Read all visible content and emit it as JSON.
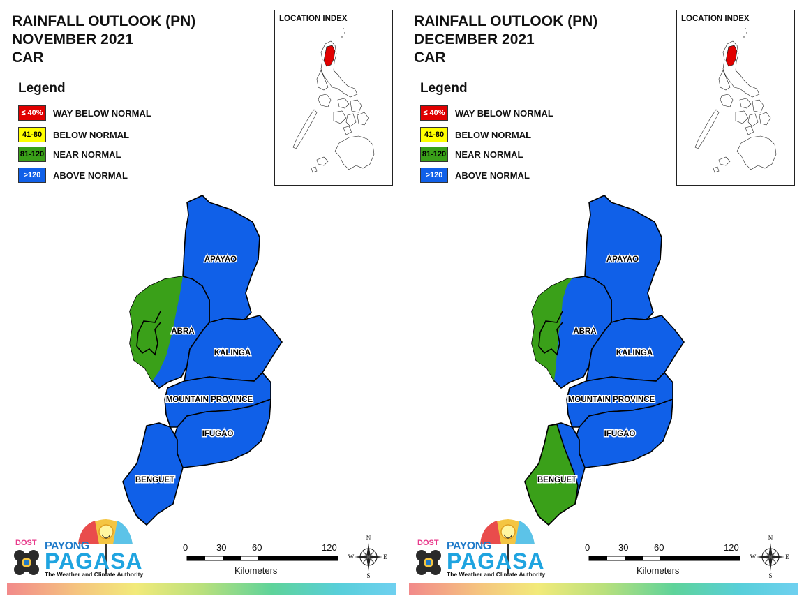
{
  "panels": [
    {
      "title_line1": "RAINFALL OUTLOOK (PN)",
      "title_line2": "NOVEMBER 2021",
      "title_line3": "CAR"
    },
    {
      "title_line1": "RAINFALL OUTLOOK (PN)",
      "title_line2": "DECEMBER 2021",
      "title_line3": "CAR"
    }
  ],
  "legend": {
    "title": "Legend",
    "items": [
      {
        "code": "≤ 40%",
        "label": "WAY BELOW NORMAL",
        "color": "#e00000",
        "text_color": "#ffffff"
      },
      {
        "code": "41-80",
        "label": "BELOW NORMAL",
        "color": "#ffff00",
        "text_color": "#000000"
      },
      {
        "code": "81-120",
        "label": "NEAR NORMAL",
        "color": "#3aa019",
        "text_color": "#000000"
      },
      {
        "code": ">120",
        "label": "ABOVE NORMAL",
        "color": "#1060e8",
        "text_color": "#ffffff"
      }
    ]
  },
  "location_index": {
    "title": "LOCATION INDEX",
    "highlight_color": "#e00000"
  },
  "provinces": {
    "apayao": "APAYAO",
    "abra": "ABRA",
    "kalinga": "KALINGA",
    "mountain_province": "MOUNTAIN PROVINCE",
    "ifugao": "IFUGAO",
    "benguet": "BENGUET"
  },
  "province_categories": [
    {
      "APAYAO": "ABOVE NORMAL",
      "ABRA": "ABOVE NORMAL / NEAR NORMAL (west)",
      "KALINGA": "ABOVE NORMAL",
      "MOUNTAIN PROVINCE": "ABOVE NORMAL",
      "IFUGAO": "ABOVE NORMAL",
      "BENGUET": "ABOVE NORMAL"
    },
    {
      "APAYAO": "ABOVE NORMAL",
      "ABRA": "ABOVE NORMAL / NEAR NORMAL (west)",
      "KALINGA": "ABOVE NORMAL",
      "MOUNTAIN PROVINCE": "ABOVE NORMAL",
      "IFUGAO": "ABOVE NORMAL",
      "BENGUET": "NEAR NORMAL / ABOVE NORMAL (east)"
    }
  ],
  "scale_bar": {
    "ticks": [
      "0",
      "30",
      "60",
      "120"
    ],
    "units": "Kilometers"
  },
  "north_arrow": {
    "n": "N",
    "s": "S",
    "e": "E",
    "w": "W"
  },
  "logo": {
    "dost": "DOST",
    "payong": "PAYONG",
    "pagasa": "PAGASA",
    "tagline": "The Weather and Climate Authority"
  }
}
